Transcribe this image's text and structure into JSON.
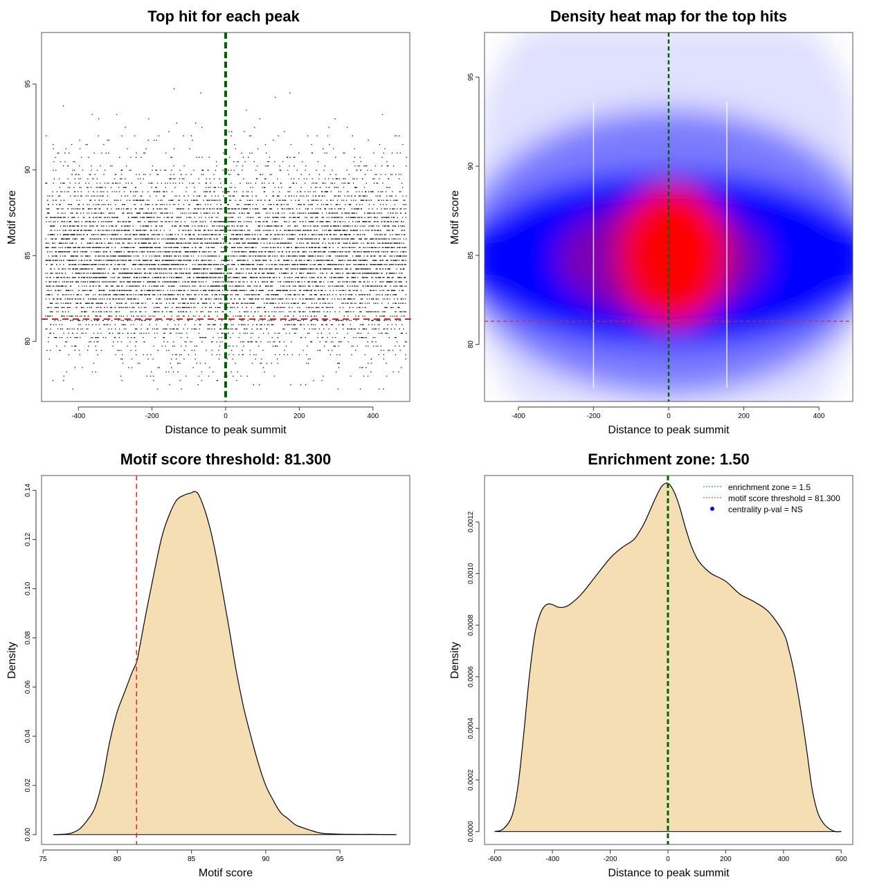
{
  "chart_data": [
    {
      "type": "scatter",
      "title": "Top hit for each peak",
      "xlabel": "Distance to peak summit",
      "ylabel": "Motif score",
      "xlim": [
        -500,
        500
      ],
      "ylim": [
        76.5,
        98.0
      ],
      "x_ticks": [
        -400,
        -200,
        0,
        200,
        400
      ],
      "y_ticks": [
        80,
        85,
        90,
        95
      ],
      "points_description_center": 84.8,
      "threshold_line": 81.3,
      "summit_line": 0,
      "threshold_color": "#dd2222",
      "summit_color": "#006400",
      "grid": false
    },
    {
      "type": "heatmap",
      "title": "Density heat map for the top hits",
      "xlabel": "Distance to peak summit",
      "ylabel": "Motif score",
      "xlim": [
        -490,
        490
      ],
      "ylim": [
        76.8,
        97.5
      ],
      "x_ticks": [
        -400,
        -200,
        0,
        200,
        400
      ],
      "y_ticks": [
        80,
        85,
        90,
        95
      ],
      "threshold_line": 81.3,
      "summit_line": 0,
      "colors": [
        "#ffffff",
        "#0000ff",
        "#ff0000"
      ],
      "grid": false
    },
    {
      "type": "area",
      "title": "Motif score threshold: 81.300",
      "xlabel": "Motif score",
      "ylabel": "Density",
      "xlim": [
        74.9,
        99.7
      ],
      "ylim": [
        -0.004,
        0.146
      ],
      "x_ticks": [
        75,
        80,
        85,
        90,
        95
      ],
      "y_ticks": [
        "0.00",
        "0.02",
        "0.04",
        "0.06",
        "0.08",
        "0.10",
        "0.12",
        "0.14"
      ],
      "x": [
        75.7,
        76.5,
        77.0,
        77.5,
        78.0,
        78.5,
        79.0,
        79.5,
        80.0,
        80.5,
        81.0,
        81.3,
        81.5,
        82.0,
        82.5,
        83.0,
        83.5,
        84.0,
        84.5,
        85.0,
        85.2,
        85.5,
        86.0,
        86.5,
        87.0,
        87.5,
        88.0,
        88.5,
        89.0,
        89.5,
        90.0,
        90.5,
        91.0,
        91.5,
        92.0,
        92.5,
        93.0,
        93.5,
        94.0,
        95.0,
        96.0,
        97.0,
        98.8
      ],
      "y": [
        0.0,
        0.0002,
        0.0008,
        0.0025,
        0.006,
        0.011,
        0.022,
        0.038,
        0.05,
        0.058,
        0.066,
        0.07,
        0.076,
        0.092,
        0.107,
        0.121,
        0.13,
        0.136,
        0.138,
        0.139,
        0.1395,
        0.138,
        0.13,
        0.118,
        0.102,
        0.085,
        0.067,
        0.052,
        0.04,
        0.029,
        0.02,
        0.014,
        0.009,
        0.0065,
        0.004,
        0.0028,
        0.0018,
        0.0009,
        0.0004,
        0.0002,
        0.0001,
        0.0001,
        0.0
      ],
      "threshold_line": 81.3,
      "fill_color": "#f5deb3",
      "threshold_color": "#dd2222",
      "grid": false
    },
    {
      "type": "area",
      "title": "Enrichment zone: 1.50",
      "xlabel": "Distance to peak summit",
      "ylabel": "Density",
      "xlim": [
        -635,
        640
      ],
      "ylim": [
        -5e-05,
        0.00138
      ],
      "x_ticks": [
        -600,
        -400,
        -200,
        0,
        200,
        400,
        600
      ],
      "y_ticks": [
        "0.0000",
        "0.0002",
        "0.0004",
        "0.0006",
        "0.0008",
        "0.0010",
        "0.0012"
      ],
      "x": [
        -600,
        -570,
        -540,
        -520,
        -500,
        -480,
        -460,
        -440,
        -420,
        -400,
        -380,
        -360,
        -340,
        -300,
        -250,
        -200,
        -160,
        -120,
        -100,
        -80,
        -60,
        -40,
        -20,
        0,
        20,
        40,
        60,
        80,
        100,
        120,
        150,
        200,
        250,
        300,
        350,
        400,
        420,
        440,
        460,
        480,
        500,
        520,
        540,
        560,
        580,
        600
      ],
      "y": [
        0.0,
        1e-05,
        6e-05,
        0.00017,
        0.00037,
        0.0006,
        0.00077,
        0.00085,
        0.00088,
        0.00088,
        0.00087,
        0.00087,
        0.00088,
        0.00092,
        0.00099,
        0.00106,
        0.0011,
        0.00113,
        0.00116,
        0.0012,
        0.00125,
        0.0013,
        0.00134,
        0.00135,
        0.00132,
        0.00126,
        0.00118,
        0.00111,
        0.00106,
        0.00103,
        0.001,
        0.00097,
        0.00092,
        0.00089,
        0.00085,
        0.00077,
        0.0007,
        0.0006,
        0.00047,
        0.00032,
        0.00016,
        7e-05,
        3e-05,
        1e-05,
        0.0,
        0.0
      ],
      "summit_line": 0,
      "fill_color": "#f5deb3",
      "summit_color": "#006400",
      "legend_position": "top-right",
      "legend": [
        {
          "label": "enrichment zone = 1.5",
          "color": "#009900",
          "kind": "dotted-line"
        },
        {
          "label": "motif score threshold = 81.300",
          "color": "#dd2222",
          "kind": "dotted-line"
        },
        {
          "label": "centrality p-val = NS",
          "color": "#0000ff",
          "kind": "point"
        }
      ],
      "grid": false
    }
  ]
}
